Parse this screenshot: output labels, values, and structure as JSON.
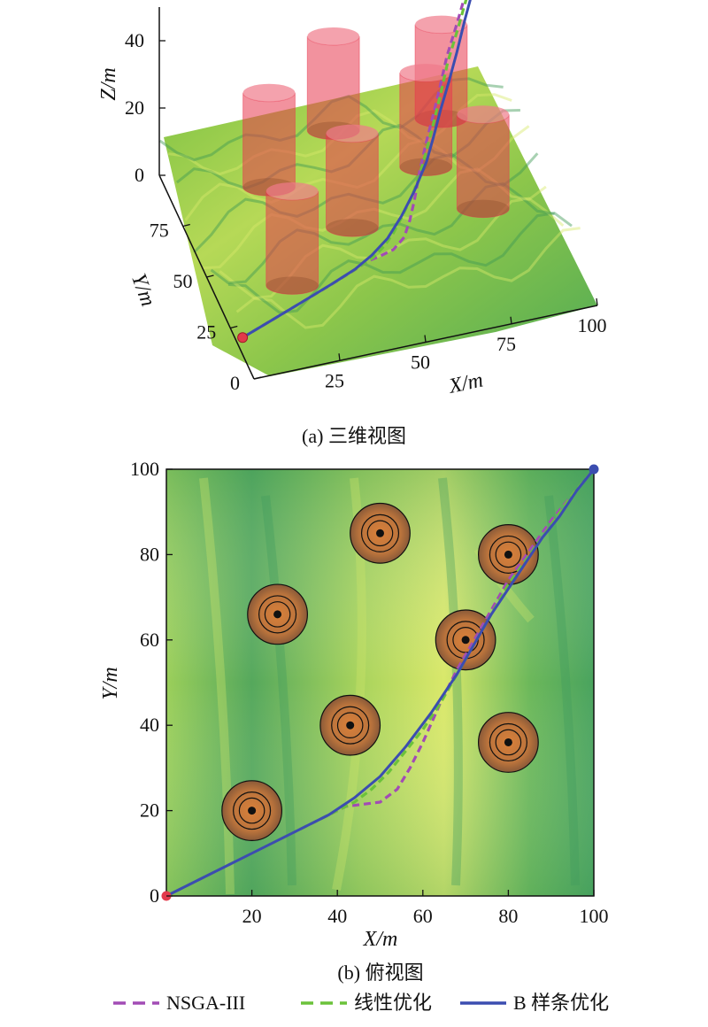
{
  "chart_data": [
    {
      "panel": "a",
      "type": "3d-surface",
      "caption": "(a) 三维视图",
      "xlabel": "X/m",
      "ylabel": "Y/m",
      "zlabel": "Z/m",
      "x_ticks": [
        "25",
        "50",
        "75",
        "100"
      ],
      "y_ticks": [
        "0",
        "25",
        "50",
        "75"
      ],
      "z_ticks": [
        "0",
        "20",
        "40"
      ],
      "xlim": [
        0,
        100
      ],
      "ylim": [
        0,
        100
      ],
      "zlim": [
        0,
        50
      ],
      "obstacle_color": "#e8384f",
      "obstacles": [
        {
          "x": 20,
          "y": 20,
          "r": 7,
          "h": 28
        },
        {
          "x": 43,
          "y": 40,
          "r": 7,
          "h": 28
        },
        {
          "x": 26,
          "y": 66,
          "r": 7,
          "h": 28
        },
        {
          "x": 50,
          "y": 85,
          "r": 7,
          "h": 28
        },
        {
          "x": 70,
          "y": 60,
          "r": 7,
          "h": 28
        },
        {
          "x": 80,
          "y": 80,
          "r": 7,
          "h": 28
        },
        {
          "x": 80,
          "y": 36,
          "r": 7,
          "h": 28
        }
      ],
      "start": {
        "x": 0,
        "y": 0,
        "z": 5
      },
      "goal": {
        "x": 100,
        "y": 100,
        "z": 50
      }
    },
    {
      "panel": "b",
      "type": "heatmap",
      "caption": "(b) 俯视图",
      "xlabel": "X/m",
      "ylabel": "Y/m",
      "x_ticks": [
        20,
        40,
        60,
        80,
        100
      ],
      "y_ticks": [
        0,
        20,
        40,
        60,
        80,
        100
      ],
      "xlim": [
        0,
        100
      ],
      "ylim": [
        0,
        100
      ],
      "threat_centers": [
        {
          "x": 20,
          "y": 20
        },
        {
          "x": 43,
          "y": 40
        },
        {
          "x": 26,
          "y": 66
        },
        {
          "x": 50,
          "y": 85
        },
        {
          "x": 70,
          "y": 60
        },
        {
          "x": 80,
          "y": 80
        },
        {
          "x": 80,
          "y": 36
        }
      ],
      "threat_radius": 7,
      "series": [
        {
          "name": "NSGA-III",
          "color": "#a24bb5",
          "style": "dashed",
          "x": [
            0,
            10,
            20,
            30,
            38,
            42,
            46,
            50,
            54,
            57,
            60,
            64,
            68,
            72,
            76,
            80,
            85,
            90,
            95,
            100
          ],
          "y": [
            0,
            5,
            10,
            15,
            19,
            21,
            21.5,
            22,
            25,
            30,
            36,
            45,
            53,
            60,
            67,
            74,
            81,
            88,
            94,
            100
          ]
        },
        {
          "name": "线性优化",
          "color": "#6bc23a",
          "style": "dashed",
          "x": [
            0,
            10,
            20,
            30,
            38,
            44,
            48,
            52,
            56,
            60,
            64,
            68,
            72,
            76,
            80,
            85,
            90,
            95,
            100
          ],
          "y": [
            0,
            5,
            10,
            15,
            19,
            22,
            25,
            29,
            34,
            39,
            45,
            52,
            59,
            66,
            73,
            80,
            87,
            94,
            100
          ]
        },
        {
          "name": "B 样条优化",
          "color": "#3b4db0",
          "style": "solid",
          "x": [
            0,
            10,
            20,
            30,
            38,
            44,
            50,
            56,
            62,
            68,
            72,
            76,
            80,
            84,
            88,
            92,
            96,
            100
          ],
          "y": [
            0,
            5,
            10,
            15,
            19,
            23,
            28,
            35,
            43,
            52,
            59,
            66,
            72,
            78,
            84,
            89,
            95,
            100
          ]
        }
      ],
      "start": {
        "x": 0,
        "y": 0
      },
      "goal": {
        "x": 100,
        "y": 100
      }
    }
  ],
  "legend": {
    "items": [
      {
        "label": "NSGA-III",
        "color": "#a24bb5",
        "style": "dashed"
      },
      {
        "label": "线性优化",
        "color": "#6bc23a",
        "style": "dashed"
      },
      {
        "label": "B 样条优化",
        "color": "#3b4db0",
        "style": "solid"
      }
    ]
  }
}
